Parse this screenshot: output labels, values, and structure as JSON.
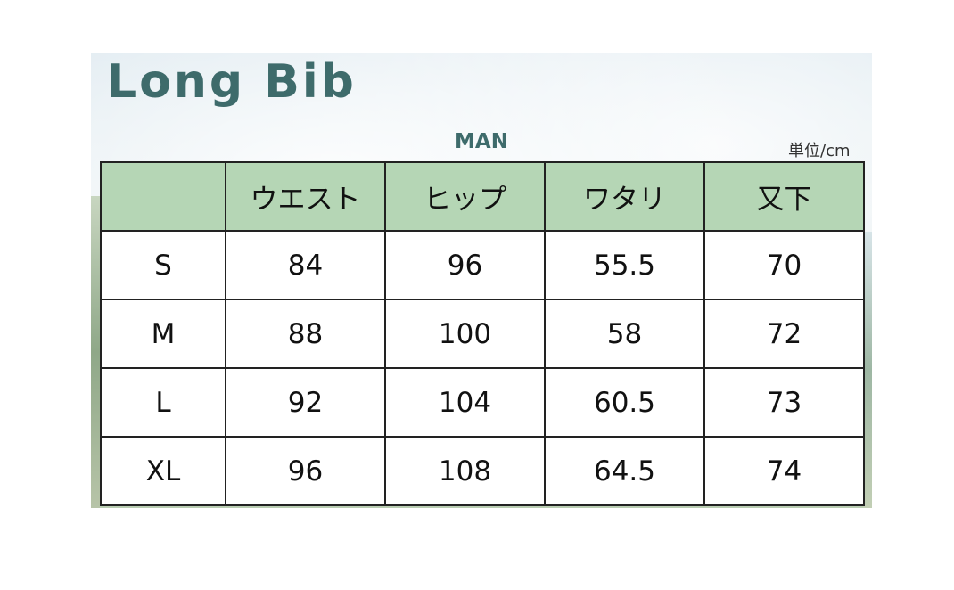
{
  "title": "Long Bib",
  "gender": "MAN",
  "unit": "単位/cm",
  "colors": {
    "title": "#3e6b6b",
    "header_bg": "#b5d6b5"
  },
  "table": {
    "headers": [
      "",
      "ウエスト",
      "ヒップ",
      "ワタリ",
      "又下"
    ],
    "rows": [
      [
        "S",
        "84",
        "96",
        "55.5",
        "70"
      ],
      [
        "M",
        "88",
        "100",
        "58",
        "72"
      ],
      [
        "L",
        "92",
        "104",
        "60.5",
        "73"
      ],
      [
        "XL",
        "96",
        "108",
        "64.5",
        "74"
      ]
    ]
  }
}
